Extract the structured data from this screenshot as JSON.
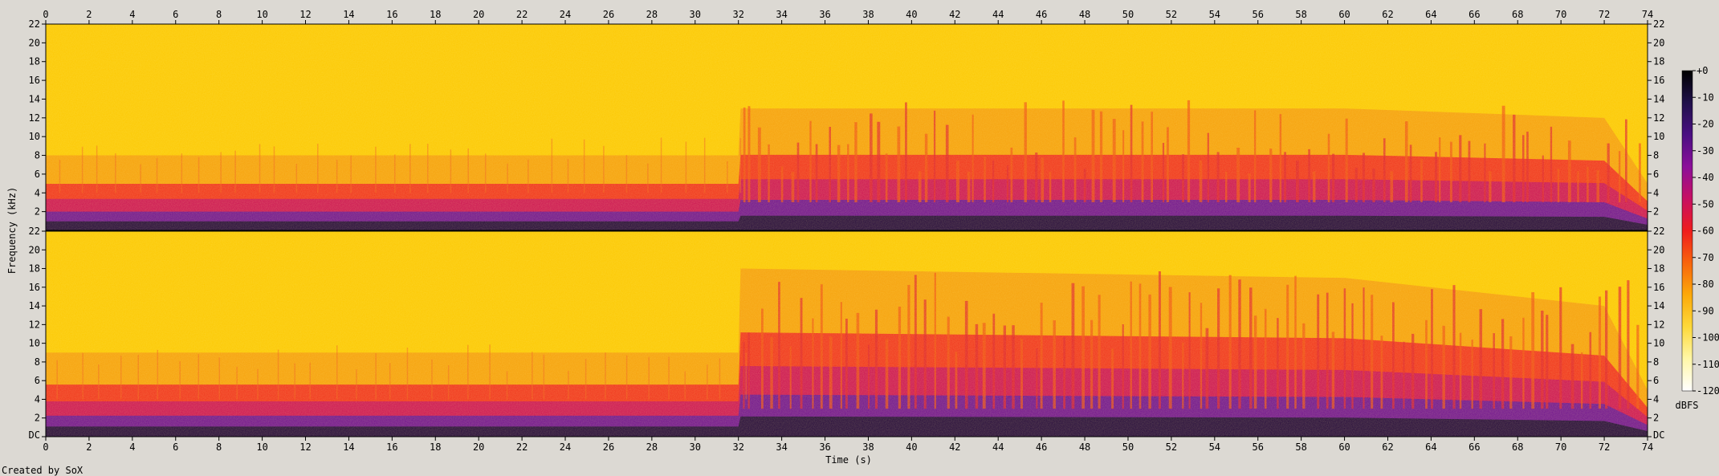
{
  "chart_data": {
    "type": "heatmap",
    "title": "",
    "xlabel": "Time (s)",
    "ylabel": "Frequency (kHz)",
    "footer": "Created by SoX",
    "x": {
      "min": 0,
      "max": 74,
      "ticks": [
        0,
        2,
        4,
        6,
        8,
        10,
        12,
        14,
        16,
        18,
        20,
        22,
        24,
        26,
        28,
        30,
        32,
        34,
        36,
        38,
        40,
        42,
        44,
        46,
        48,
        50,
        52,
        54,
        56,
        58,
        60,
        62,
        64,
        66,
        68,
        70,
        72,
        74
      ]
    },
    "channels": [
      {
        "channel": "ch1",
        "ylim": [
          0,
          22
        ],
        "y_tick_labels": [
          "2",
          "4",
          "6",
          "8",
          "10",
          "12",
          "14",
          "16",
          "18",
          "20",
          "22"
        ],
        "bottom_label": "",
        "dense_band_top_khz": [
          {
            "t": 0,
            "khz": 8
          },
          {
            "t": 32,
            "khz": 8
          },
          {
            "t": 32.1,
            "khz": 13
          },
          {
            "t": 60,
            "khz": 13
          },
          {
            "t": 72,
            "khz": 12
          },
          {
            "t": 74,
            "khz": 5
          }
        ]
      },
      {
        "channel": "ch2",
        "ylim": [
          0,
          22
        ],
        "y_tick_labels": [
          "DC",
          "2",
          "4",
          "6",
          "8",
          "10",
          "12",
          "14",
          "16",
          "18",
          "20",
          "22"
        ],
        "bottom_label": "DC",
        "dense_band_top_khz": [
          {
            "t": 0,
            "khz": 9
          },
          {
            "t": 32,
            "khz": 9
          },
          {
            "t": 32.1,
            "khz": 18
          },
          {
            "t": 60,
            "khz": 17
          },
          {
            "t": 72,
            "khz": 14
          },
          {
            "t": 74,
            "khz": 5
          }
        ]
      }
    ],
    "colorbar": {
      "label": "dBFS",
      "min": -120,
      "max": 0,
      "tick_labels": [
        "+0",
        "-10",
        "-20",
        "-30",
        "-40",
        "-50",
        "-60",
        "-70",
        "-80",
        "-90",
        "-100",
        "-110",
        "-120"
      ],
      "colors": [
        "#000000",
        "#20104a",
        "#4a0f82",
        "#8b0f9a",
        "#c70f62",
        "#ef1d1d",
        "#f8640c",
        "#fca90a",
        "#fdd93a",
        "#fff7a8",
        "#ffffff"
      ]
    }
  }
}
